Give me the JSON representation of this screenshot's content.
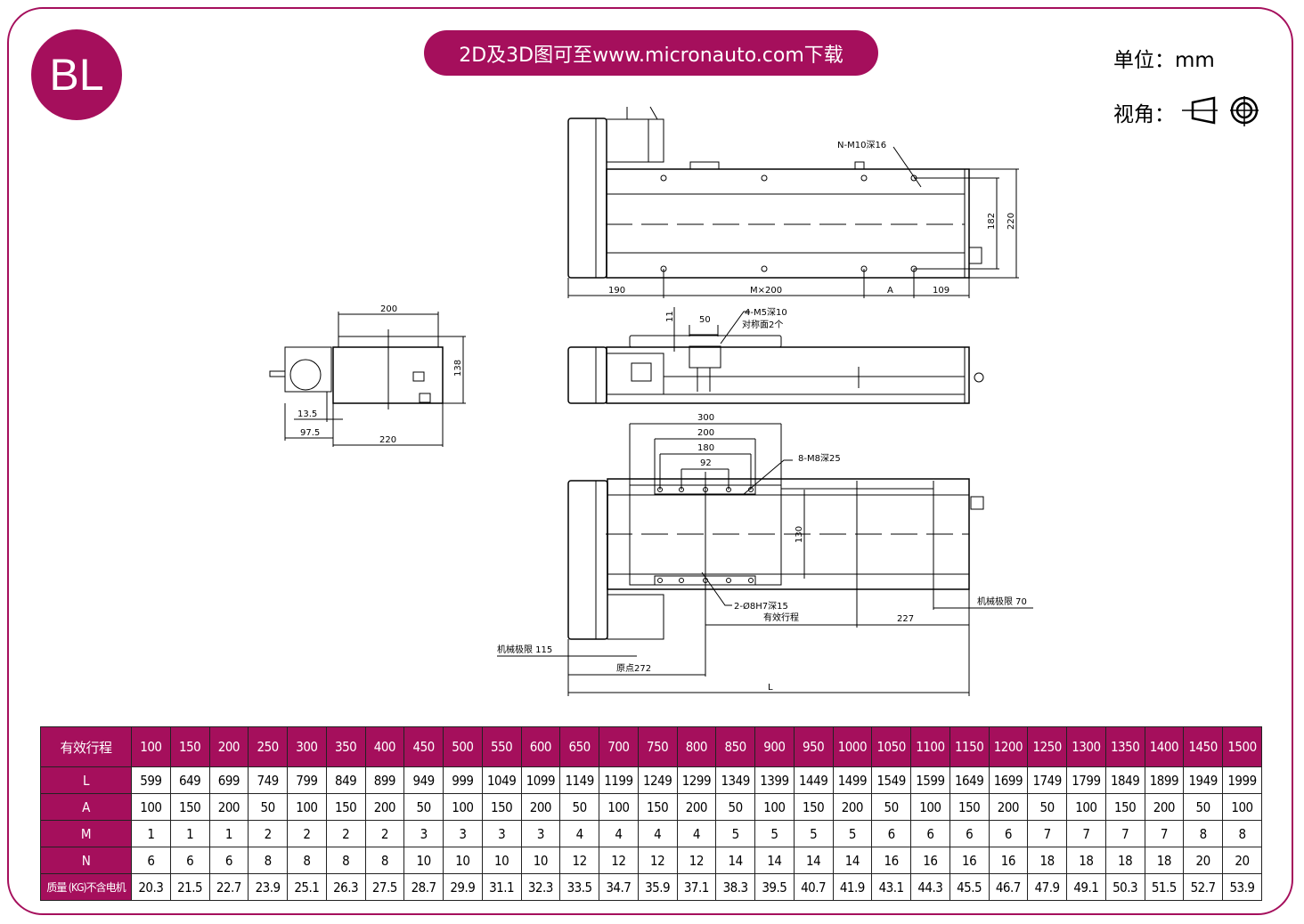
{
  "header": {
    "logo_text": "BL",
    "banner": "2D及3D图可至www.micronauto.com下载",
    "unit_label": "单位：mm",
    "view_label": "视角：",
    "view_icon": "third-angle-projection-icon",
    "accent_color": "#A50F5C"
  },
  "drawing": {
    "top_view": {
      "tap_note": "N-M10深16",
      "dim_190": "190",
      "dim_m200": "M×200",
      "dim_a": "A",
      "dim_109": "109",
      "dim_182": "182",
      "dim_220": "220"
    },
    "side_view": {
      "tap_note_1": "4-M5深10",
      "tap_note_2": "对称面2个",
      "dim_50": "50",
      "dim_11": "11"
    },
    "end_view": {
      "dim_200": "200",
      "dim_138": "138",
      "dim_13_5": "13.5",
      "dim_97_5": "97.5",
      "dim_220": "220"
    },
    "bottom_view": {
      "dim_300": "300",
      "dim_200": "200",
      "dim_180": "180",
      "dim_92": "92",
      "tap_note": "8-M8深25",
      "dim_130": "130",
      "pin_note": "2-Ø8H7深15",
      "stroke_label": "有效行程",
      "dim_227": "227",
      "mech_limit_70": "机械极限 70",
      "mech_limit_115": "机械极限 115",
      "origin_272": "原点272",
      "dim_l": "L"
    }
  },
  "table": {
    "row_headers": [
      "有效行程",
      "L",
      "A",
      "M",
      "N",
      "质量 (KG)不含电机"
    ],
    "stroke": [
      "100",
      "150",
      "200",
      "250",
      "300",
      "350",
      "400",
      "450",
      "500",
      "550",
      "600",
      "650",
      "700",
      "750",
      "800",
      "850",
      "900",
      "950",
      "1000",
      "1050",
      "1100",
      "1150",
      "1200",
      "1250",
      "1300",
      "1350",
      "1400",
      "1450",
      "1500"
    ],
    "L": [
      "599",
      "649",
      "699",
      "749",
      "799",
      "849",
      "899",
      "949",
      "999",
      "1049",
      "1099",
      "1149",
      "1199",
      "1249",
      "1299",
      "1349",
      "1399",
      "1449",
      "1499",
      "1549",
      "1599",
      "1649",
      "1699",
      "1749",
      "1799",
      "1849",
      "1899",
      "1949",
      "1999"
    ],
    "A": [
      "100",
      "150",
      "200",
      "50",
      "100",
      "150",
      "200",
      "50",
      "100",
      "150",
      "200",
      "50",
      "100",
      "150",
      "200",
      "50",
      "100",
      "150",
      "200",
      "50",
      "100",
      "150",
      "200",
      "50",
      "100",
      "150",
      "200",
      "50",
      "100"
    ],
    "M": [
      "1",
      "1",
      "1",
      "2",
      "2",
      "2",
      "2",
      "3",
      "3",
      "3",
      "3",
      "4",
      "4",
      "4",
      "4",
      "5",
      "5",
      "5",
      "5",
      "6",
      "6",
      "6",
      "6",
      "7",
      "7",
      "7",
      "7",
      "8",
      "8"
    ],
    "N": [
      "6",
      "6",
      "6",
      "8",
      "8",
      "8",
      "8",
      "10",
      "10",
      "10",
      "10",
      "12",
      "12",
      "12",
      "12",
      "14",
      "14",
      "14",
      "14",
      "16",
      "16",
      "16",
      "16",
      "18",
      "18",
      "18",
      "18",
      "20",
      "20"
    ],
    "mass": [
      "20.3",
      "21.5",
      "22.7",
      "23.9",
      "25.1",
      "26.3",
      "27.5",
      "28.7",
      "29.9",
      "31.1",
      "32.3",
      "33.5",
      "34.7",
      "35.9",
      "37.1",
      "38.3",
      "39.5",
      "40.7",
      "41.9",
      "43.1",
      "44.3",
      "45.5",
      "46.7",
      "47.9",
      "49.1",
      "50.3",
      "51.5",
      "52.7",
      "53.9"
    ]
  }
}
